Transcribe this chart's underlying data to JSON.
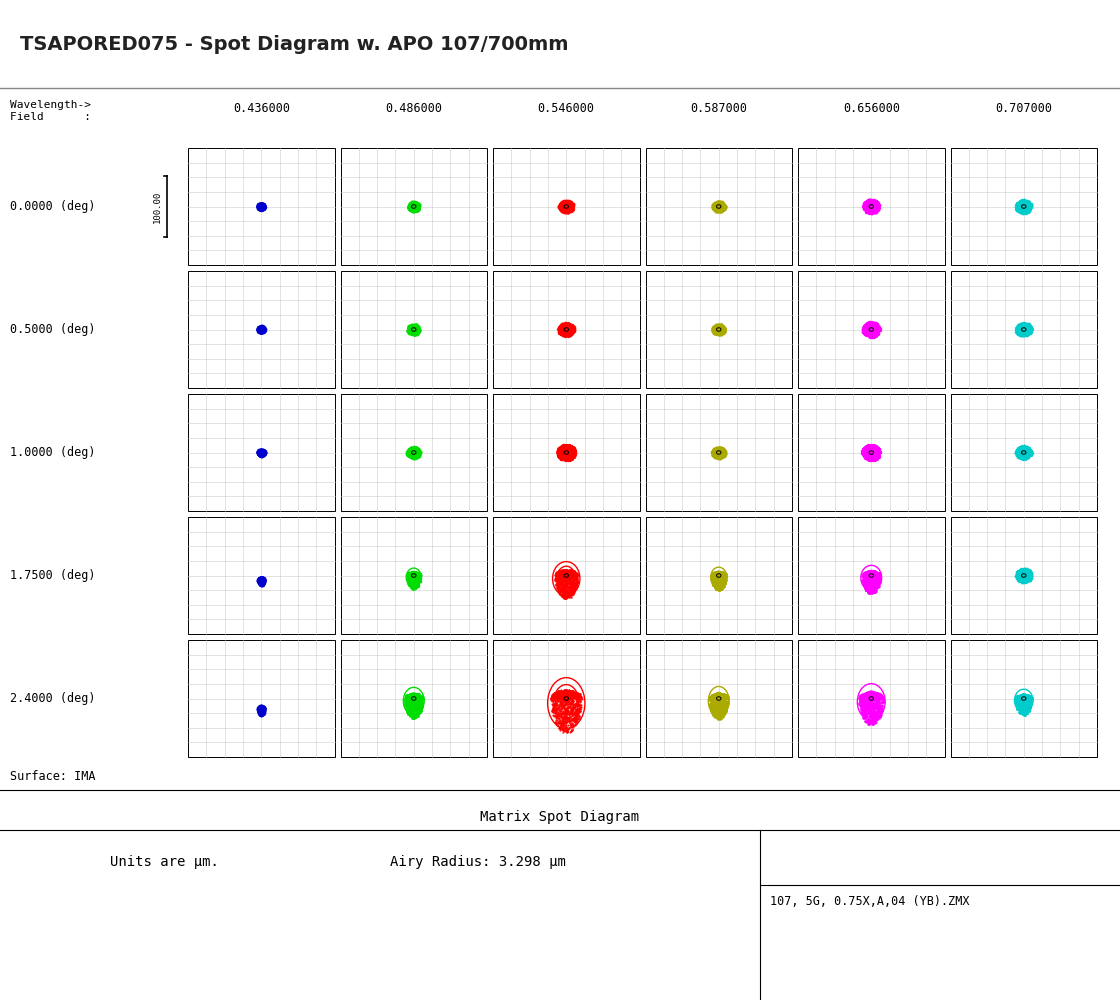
{
  "title": "TSAPORED075 - Spot Diagram w. APO 107/700mm",
  "wavelengths": [
    0.436,
    0.486,
    0.546,
    0.587,
    0.656,
    0.707
  ],
  "fields": [
    0.0,
    0.5,
    1.0,
    1.75,
    2.4
  ],
  "colors": [
    "#0000cc",
    "#00dd00",
    "#ff0000",
    "#aaaa00",
    "#ff00ff",
    "#00cccc"
  ],
  "scale_label": "100.00",
  "surface_label": "Surface: IMA",
  "bottom_title": "Matrix Spot Diagram",
  "units_text": "Units are μm.",
  "airy_text": "Airy Radius: 3.298 μm",
  "bottom_right_text": "107, 5G, 0.75X,A,04 (YB).ZMX",
  "bg_color": "#ffffff",
  "grid_color": "#cccccc",
  "n_grid": 8,
  "spot_params": {
    "comment": "[field][wavelength]: [rx, ry, n_rings, coma_down, offset_y_norm]",
    "data": [
      [
        [
          4,
          4,
          0,
          0,
          0
        ],
        [
          8,
          8,
          1,
          0,
          0
        ],
        [
          11,
          11,
          1,
          0,
          0
        ],
        [
          9,
          9,
          1,
          0,
          0
        ],
        [
          12,
          13,
          2,
          0,
          0
        ],
        [
          12,
          12,
          1,
          0,
          0
        ]
      ],
      [
        [
          4,
          4,
          0,
          0,
          0
        ],
        [
          9,
          9,
          1,
          0,
          0
        ],
        [
          12,
          12,
          1,
          0,
          0
        ],
        [
          9,
          9,
          1,
          0,
          0
        ],
        [
          13,
          14,
          2,
          0,
          0
        ],
        [
          12,
          12,
          1,
          0,
          0
        ]
      ],
      [
        [
          4,
          4,
          0,
          0,
          0
        ],
        [
          10,
          10,
          1,
          0,
          0
        ],
        [
          14,
          15,
          2,
          0,
          0
        ],
        [
          10,
          10,
          1,
          0,
          0
        ],
        [
          14,
          15,
          2,
          0,
          0
        ],
        [
          12,
          12,
          1,
          0,
          0
        ]
      ],
      [
        [
          4,
          5,
          0,
          1,
          0.15
        ],
        [
          13,
          16,
          2,
          1,
          0
        ],
        [
          22,
          28,
          3,
          1,
          0
        ],
        [
          14,
          18,
          2,
          1,
          0
        ],
        [
          18,
          22,
          2,
          1,
          0
        ],
        [
          12,
          13,
          1,
          0,
          0
        ]
      ],
      [
        [
          4,
          7,
          0,
          1,
          0.35
        ],
        [
          18,
          24,
          2,
          1,
          0
        ],
        [
          30,
          42,
          3,
          1,
          0
        ],
        [
          18,
          26,
          2,
          1,
          0
        ],
        [
          24,
          32,
          2,
          1,
          0
        ],
        [
          16,
          20,
          2,
          1,
          0
        ]
      ]
    ]
  }
}
